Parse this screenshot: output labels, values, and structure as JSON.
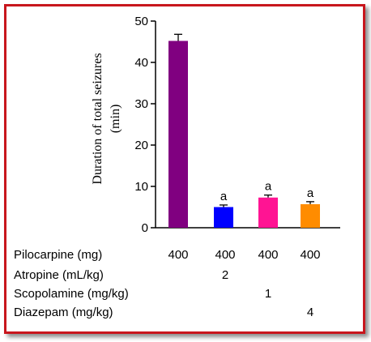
{
  "chart_data": {
    "type": "bar",
    "ylabel": "Duration of total seizures\n(min)",
    "ylim": [
      0,
      50
    ],
    "yticks": [
      0,
      10,
      20,
      30,
      40,
      50
    ],
    "bars": [
      {
        "value": 45.2,
        "error": 1.6,
        "color": "#800080",
        "significance": ""
      },
      {
        "value": 5.0,
        "error": 0.5,
        "color": "#0000ff",
        "significance": "a"
      },
      {
        "value": 7.3,
        "error": 0.6,
        "color": "#ff1493",
        "significance": "a"
      },
      {
        "value": 5.7,
        "error": 0.6,
        "color": "#ff8c00",
        "significance": "a"
      }
    ],
    "treatment_table": [
      {
        "label": "Pilocarpine (mg)",
        "values": [
          "400",
          "400",
          "400",
          "400"
        ]
      },
      {
        "label": "Atropine (mL/kg)",
        "values": [
          "",
          "2",
          "",
          ""
        ]
      },
      {
        "label": "Scopolamine (mg/kg)",
        "values": [
          "",
          "",
          "1",
          ""
        ]
      },
      {
        "label": "Diazepam (mg/kg)",
        "values": [
          "",
          "",
          "",
          "4"
        ]
      }
    ]
  },
  "colors": {
    "frame": "#c8161d"
  }
}
